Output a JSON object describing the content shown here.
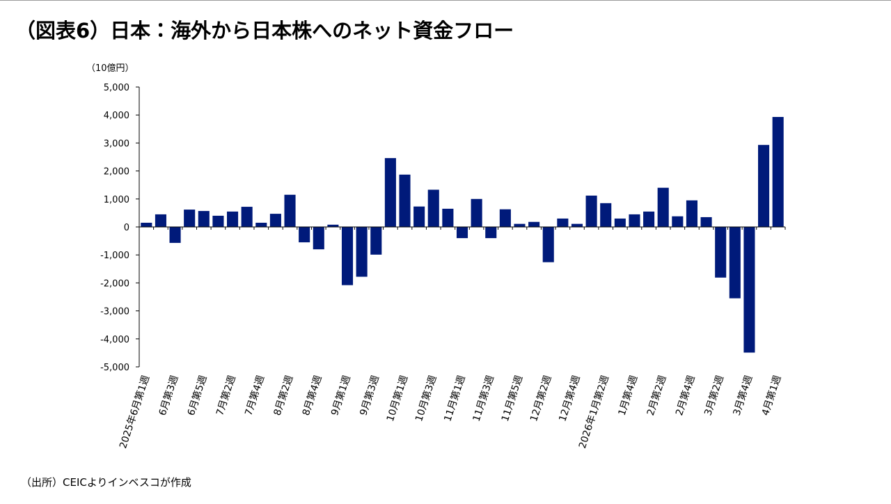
{
  "chart_data": {
    "type": "bar",
    "title": "（図表6）日本：海外から日本株へのネット資金フロー",
    "y_unit": "（10億円）",
    "source": "（出所）CEICよりインベスコが作成",
    "color": "#001a7a",
    "negative_tick_color": "#e00000",
    "categories": [
      "2025年6月第1週",
      null,
      "6月第3週",
      null,
      "6月第5週",
      null,
      "7月第2週",
      null,
      "7月第4週",
      null,
      "8月第2週",
      null,
      "8月第4週",
      null,
      "9月第1週",
      null,
      "9月第3週",
      null,
      "10月第1週",
      null,
      "10月第3週",
      null,
      "11月第1週",
      null,
      "11月第3週",
      null,
      "11月第5週",
      null,
      "12月第2週",
      null,
      "12月第4週",
      null,
      "2026年1月第2週",
      null,
      "1月第4週",
      null,
      "2月第2週",
      null,
      "2月第4週",
      null,
      "3月第2週",
      null,
      "3月第4週",
      null,
      "4月第1週"
    ],
    "values": [
      150,
      450,
      -570,
      620,
      570,
      400,
      550,
      720,
      150,
      470,
      1150,
      -550,
      -800,
      80,
      -2080,
      -1780,
      -990,
      2460,
      1870,
      730,
      1330,
      650,
      -400,
      1000,
      -400,
      630,
      110,
      180,
      -1260,
      300,
      110,
      1120,
      850,
      300,
      450,
      550,
      1400,
      380,
      950,
      350,
      -1810,
      -2550,
      -4490,
      2930,
      3930
    ],
    "ylim": [
      -5000,
      5000
    ],
    "yticks": [
      {
        "value": -5000,
        "label": "-5,000"
      },
      {
        "value": -4000,
        "label": "-4,000"
      },
      {
        "value": -3000,
        "label": "-3,000"
      },
      {
        "value": -2000,
        "label": "-2,000"
      },
      {
        "value": -1000,
        "label": "-1,000"
      },
      0,
      {
        "value": 1000,
        "label": "1,000"
      },
      {
        "value": 2000,
        "label": "2,000"
      },
      {
        "value": 3000,
        "label": "3,000"
      },
      {
        "value": 4000,
        "label": "4,000"
      },
      {
        "value": 5000,
        "label": "5,000"
      }
    ]
  }
}
